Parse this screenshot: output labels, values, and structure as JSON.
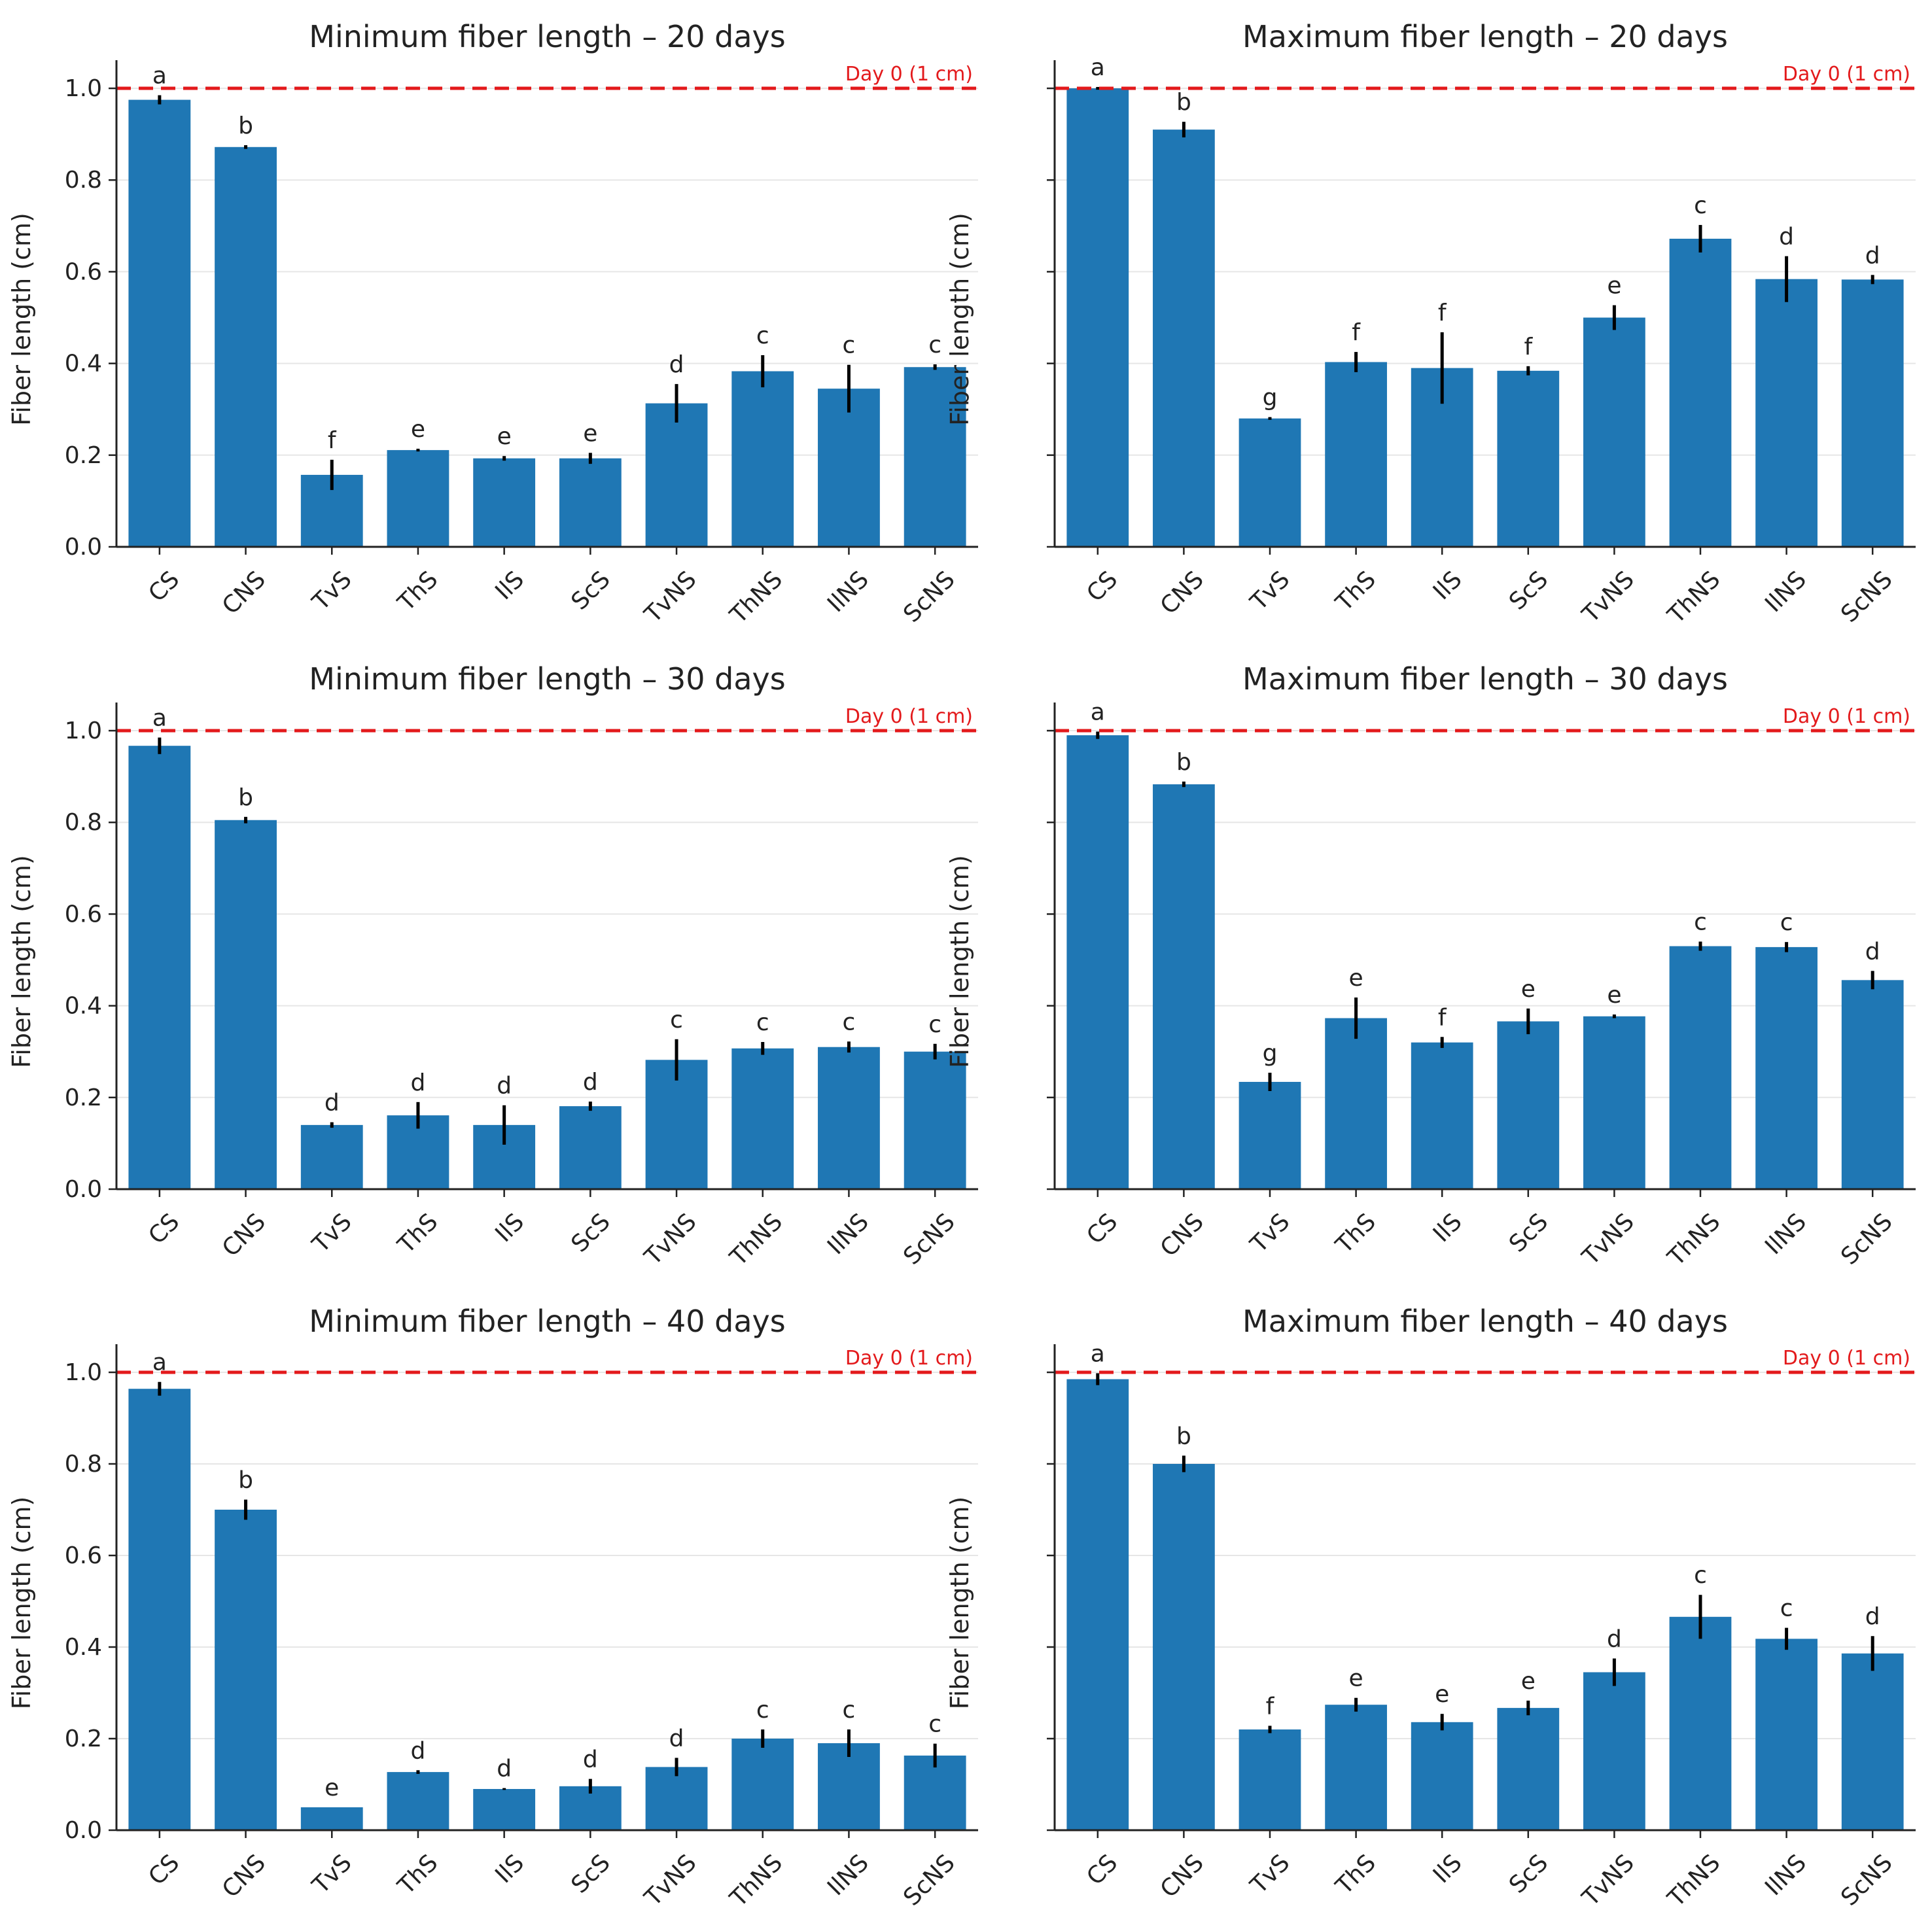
{
  "figure": {
    "bar_color": "#1f77b4",
    "error_color": "#000000",
    "ref_color": "#e31a1c",
    "grid_color": "#e6e6e6"
  },
  "chart_data": [
    {
      "type": "bar",
      "title": "Minimum fiber length – 20 days",
      "ylabel": "Fiber length (cm)",
      "xlabel": "",
      "ylim": [
        0,
        1.05
      ],
      "yticks": [
        "0.0",
        "0.2",
        "0.4",
        "0.6",
        "0.8",
        "1.0"
      ],
      "show_ytick_labels": true,
      "grid": "horizontal",
      "reference_line": {
        "y": 1.0,
        "label": "Day 0 (1 cm)"
      },
      "categories": [
        "CS",
        "CNS",
        "TvS",
        "ThS",
        "IlS",
        "ScS",
        "TvNS",
        "ThNS",
        "IlNS",
        "ScNS"
      ],
      "values": [
        0.975,
        0.872,
        0.157,
        0.211,
        0.193,
        0.193,
        0.313,
        0.383,
        0.345,
        0.392
      ],
      "errors": [
        0.01,
        0.004,
        0.033,
        0.003,
        0.005,
        0.012,
        0.042,
        0.035,
        0.052,
        0.006
      ],
      "letters": [
        "a",
        "b",
        "f",
        "e",
        "e",
        "e",
        "d",
        "c",
        "c",
        "c"
      ]
    },
    {
      "type": "bar",
      "title": "Maximum fiber length – 20 days",
      "ylabel": "Fiber length (cm)",
      "xlabel": "",
      "ylim": [
        0,
        1.05
      ],
      "yticks": [
        "0.0",
        "0.2",
        "0.4",
        "0.6",
        "0.8",
        "1.0"
      ],
      "show_ytick_labels": false,
      "grid": "horizontal",
      "reference_line": {
        "y": 1.0,
        "label": "Day 0 (1 cm)"
      },
      "categories": [
        "CS",
        "CNS",
        "TvS",
        "ThS",
        "IlS",
        "ScS",
        "TvNS",
        "ThNS",
        "IlNS",
        "ScNS"
      ],
      "values": [
        1.0,
        0.91,
        0.28,
        0.403,
        0.39,
        0.384,
        0.5,
        0.672,
        0.584,
        0.583
      ],
      "errors": [
        0.003,
        0.017,
        0.003,
        0.022,
        0.078,
        0.01,
        0.027,
        0.03,
        0.05,
        0.01
      ],
      "letters": [
        "a",
        "b",
        "g",
        "f",
        "f",
        "f",
        "e",
        "c",
        "d",
        "d"
      ]
    },
    {
      "type": "bar",
      "title": "Minimum fiber length – 30 days",
      "ylabel": "Fiber length (cm)",
      "xlabel": "",
      "ylim": [
        0,
        1.05
      ],
      "yticks": [
        "0.0",
        "0.2",
        "0.4",
        "0.6",
        "0.8",
        "1.0"
      ],
      "show_ytick_labels": true,
      "grid": "horizontal",
      "reference_line": {
        "y": 1.0,
        "label": "Day 0 (1 cm)"
      },
      "categories": [
        "CS",
        "CNS",
        "TvS",
        "ThS",
        "IlS",
        "ScS",
        "TvNS",
        "ThNS",
        "IlNS",
        "ScNS"
      ],
      "values": [
        0.967,
        0.805,
        0.14,
        0.161,
        0.14,
        0.181,
        0.282,
        0.307,
        0.31,
        0.3
      ],
      "errors": [
        0.018,
        0.007,
        0.006,
        0.029,
        0.043,
        0.01,
        0.045,
        0.014,
        0.012,
        0.017
      ],
      "letters": [
        "a",
        "b",
        "d",
        "d",
        "d",
        "d",
        "c",
        "c",
        "c",
        "c"
      ]
    },
    {
      "type": "bar",
      "title": "Maximum fiber length – 30 days",
      "ylabel": "Fiber length (cm)",
      "xlabel": "",
      "ylim": [
        0,
        1.05
      ],
      "yticks": [
        "0.0",
        "0.2",
        "0.4",
        "0.6",
        "0.8",
        "1.0"
      ],
      "show_ytick_labels": false,
      "grid": "horizontal",
      "reference_line": {
        "y": 1.0,
        "label": "Day 0 (1 cm)"
      },
      "categories": [
        "CS",
        "CNS",
        "TvS",
        "ThS",
        "IlS",
        "ScS",
        "TvNS",
        "ThNS",
        "IlNS",
        "ScNS"
      ],
      "values": [
        0.99,
        0.883,
        0.234,
        0.373,
        0.32,
        0.366,
        0.377,
        0.53,
        0.528,
        0.456
      ],
      "errors": [
        0.008,
        0.006,
        0.02,
        0.045,
        0.012,
        0.028,
        0.004,
        0.01,
        0.011,
        0.02
      ],
      "letters": [
        "a",
        "b",
        "g",
        "e",
        "f",
        "e",
        "e",
        "c",
        "c",
        "d"
      ]
    },
    {
      "type": "bar",
      "title": "Minimum fiber length – 40 days",
      "ylabel": "Fiber length (cm)",
      "xlabel": "",
      "ylim": [
        0,
        1.05
      ],
      "yticks": [
        "0.0",
        "0.2",
        "0.4",
        "0.6",
        "0.8",
        "1.0"
      ],
      "show_ytick_labels": true,
      "grid": "horizontal",
      "reference_line": {
        "y": 1.0,
        "label": "Day 0 (1 cm)"
      },
      "categories": [
        "CS",
        "CNS",
        "TvS",
        "ThS",
        "IlS",
        "ScS",
        "TvNS",
        "ThNS",
        "IlNS",
        "ScNS"
      ],
      "values": [
        0.964,
        0.7,
        0.05,
        0.127,
        0.09,
        0.096,
        0.138,
        0.2,
        0.19,
        0.163
      ],
      "errors": [
        0.015,
        0.022,
        0.0,
        0.004,
        0.002,
        0.016,
        0.02,
        0.02,
        0.03,
        0.026
      ],
      "letters": [
        "a",
        "b",
        "e",
        "d",
        "d",
        "d",
        "d",
        "c",
        "c",
        "c"
      ]
    },
    {
      "type": "bar",
      "title": "Maximum fiber length – 40 days",
      "ylabel": "Fiber length (cm)",
      "xlabel": "",
      "ylim": [
        0,
        1.05
      ],
      "yticks": [
        "0.0",
        "0.2",
        "0.4",
        "0.6",
        "0.8",
        "1.0"
      ],
      "show_ytick_labels": false,
      "grid": "horizontal",
      "reference_line": {
        "y": 1.0,
        "label": "Day 0 (1 cm)"
      },
      "categories": [
        "CS",
        "CNS",
        "TvS",
        "ThS",
        "IlS",
        "ScS",
        "TvNS",
        "ThNS",
        "IlNS",
        "ScNS"
      ],
      "values": [
        0.985,
        0.8,
        0.22,
        0.274,
        0.236,
        0.267,
        0.345,
        0.466,
        0.418,
        0.386
      ],
      "errors": [
        0.013,
        0.018,
        0.008,
        0.015,
        0.018,
        0.016,
        0.03,
        0.048,
        0.024,
        0.038
      ],
      "letters": [
        "a",
        "b",
        "f",
        "e",
        "e",
        "e",
        "d",
        "c",
        "c",
        "d"
      ]
    }
  ]
}
